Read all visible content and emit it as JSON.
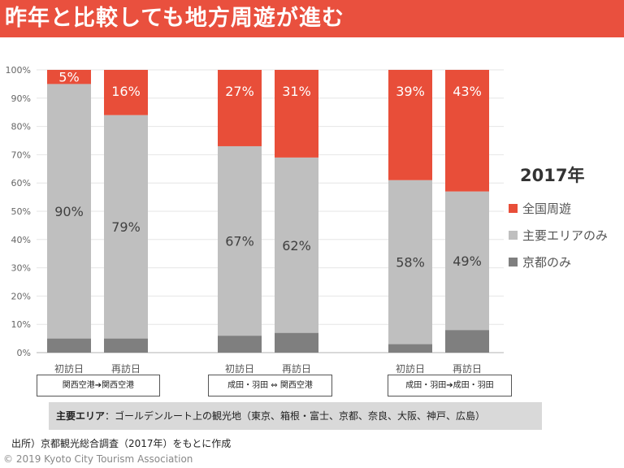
{
  "title": "昨年と比較しても地方周遊が進む",
  "chart_data": {
    "type": "stacked-bar",
    "legend_title": "2017年",
    "legend_position": "right",
    "categories": [
      "初訪日",
      "再訪日",
      "初訪日",
      "再訪日",
      "初訪日",
      "再訪日"
    ],
    "groups": [
      "関西空港➔関西空港",
      "成田・羽田 ⇔ 関西空港",
      "成田・羽田➔成田・羽田"
    ],
    "series": [
      {
        "name": "京都のみ",
        "color": "#7f7f7f",
        "values": [
          5,
          5,
          6,
          7,
          3,
          8
        ],
        "labels": [
          "",
          "",
          "",
          "",
          "",
          ""
        ]
      },
      {
        "name": "主要エリアのみ",
        "color": "#bfbfbf",
        "values": [
          90,
          79,
          67,
          62,
          58,
          49
        ],
        "labels": [
          "90%",
          "79%",
          "67%",
          "62%",
          "58%",
          "49%"
        ]
      },
      {
        "name": "全国周遊",
        "color": "#e84e39",
        "values": [
          5,
          16,
          27,
          31,
          39,
          43
        ],
        "labels": [
          "5%",
          "16%",
          "27%",
          "31%",
          "39%",
          "43%"
        ]
      }
    ],
    "ylim": [
      0,
      100
    ],
    "yticks": [
      "0%",
      "10%",
      "20%",
      "30%",
      "40%",
      "50%",
      "60%",
      "70%",
      "80%",
      "90%",
      "100%"
    ],
    "grid": true
  },
  "note": {
    "label": "主要エリア",
    "text": "：ゴールデンルート上の観光地（東京、箱根・富士、京都、奈良、大阪、神戸、広島）"
  },
  "source": "出所）京都観光総合調査（2017年）をもとに作成",
  "copyright": "© 2019 Kyoto City Tourism Association"
}
